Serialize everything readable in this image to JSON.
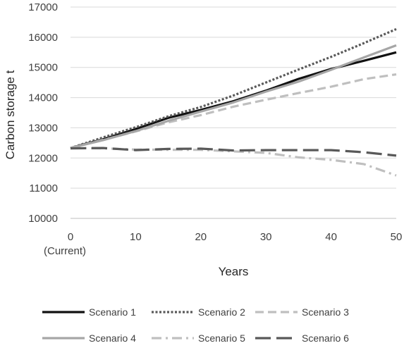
{
  "chart_data": {
    "type": "line",
    "title": "",
    "xlabel": "Years",
    "ylabel": "Carbon storage t",
    "xlim": [
      0,
      50
    ],
    "ylim": [
      10000,
      17000
    ],
    "x_ticks": [
      0,
      10,
      20,
      30,
      40,
      50
    ],
    "y_ticks": [
      10000,
      11000,
      12000,
      13000,
      14000,
      15000,
      16000,
      17000
    ],
    "x_tick_sublabel": "(Current)",
    "grid": "horizontal",
    "legend_position": "bottom",
    "series": [
      {
        "name": "Scenario 1",
        "color": "#111111",
        "style": "solid",
        "x": [
          0,
          5,
          10,
          15,
          20,
          25,
          30,
          35,
          40,
          45,
          50
        ],
        "values": [
          12330,
          12620,
          12960,
          13330,
          13590,
          13880,
          14230,
          14620,
          14950,
          15220,
          15500
        ]
      },
      {
        "name": "Scenario 2",
        "color": "#595959",
        "style": "dotted",
        "x": [
          0,
          5,
          10,
          15,
          20,
          25,
          30,
          35,
          40,
          45,
          50
        ],
        "values": [
          12330,
          12680,
          13020,
          13380,
          13690,
          14070,
          14500,
          14930,
          15350,
          15800,
          16270
        ]
      },
      {
        "name": "Scenario 3",
        "color": "#bfbfbf",
        "style": "dashed",
        "x": [
          0,
          5,
          10,
          15,
          20,
          25,
          30,
          35,
          40,
          45,
          50
        ],
        "values": [
          12330,
          12600,
          12880,
          13180,
          13420,
          13700,
          13930,
          14150,
          14360,
          14610,
          14770
        ]
      },
      {
        "name": "Scenario 4",
        "color": "#a6a6a6",
        "style": "solid",
        "x": [
          0,
          5,
          10,
          15,
          20,
          25,
          30,
          35,
          40,
          45,
          50
        ],
        "values": [
          12330,
          12590,
          12890,
          13230,
          13540,
          13840,
          14200,
          14530,
          14920,
          15330,
          15730
        ]
      },
      {
        "name": "Scenario 5",
        "color": "#bfbfbf",
        "style": "dashdot",
        "x": [
          0,
          5,
          10,
          15,
          20,
          25,
          30,
          35,
          40,
          45,
          50
        ],
        "values": [
          12330,
          12320,
          12280,
          12270,
          12270,
          12220,
          12170,
          12020,
          11940,
          11800,
          11420
        ]
      },
      {
        "name": "Scenario 6",
        "color": "#595959",
        "style": "longdash",
        "x": [
          0,
          5,
          10,
          15,
          20,
          25,
          30,
          35,
          40,
          45,
          50
        ],
        "values": [
          12320,
          12330,
          12260,
          12300,
          12310,
          12250,
          12260,
          12260,
          12260,
          12190,
          12080
        ]
      }
    ]
  }
}
